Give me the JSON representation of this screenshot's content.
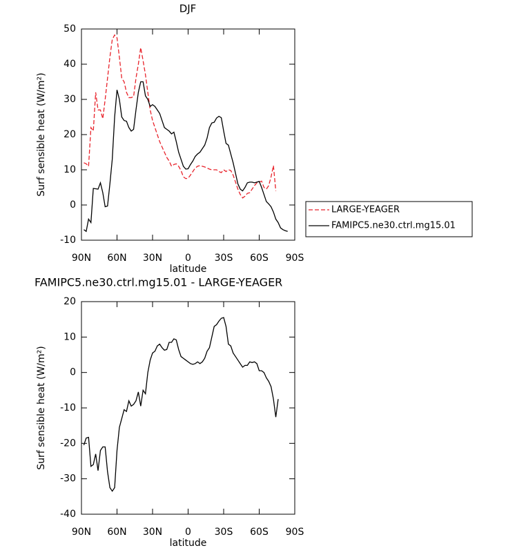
{
  "chart_data": [
    {
      "type": "line",
      "title": "DJF",
      "xlabel": "latitude",
      "ylabel": "Surf sensible heat (W/m²)",
      "xlim": [
        90,
        -90
      ],
      "xticks": [
        {
          "value": 90,
          "label": "90N"
        },
        {
          "value": 60,
          "label": "60N"
        },
        {
          "value": 30,
          "label": "30N"
        },
        0,
        {
          "value": -30,
          "label": "30S"
        },
        {
          "value": -60,
          "label": "60S"
        },
        {
          "value": -90,
          "label": "90S"
        }
      ],
      "ylim": [
        -10,
        50
      ],
      "yticks": [
        -10,
        0,
        10,
        20,
        30,
        40,
        50
      ],
      "legend": "right",
      "x": [
        88,
        86,
        84,
        82,
        80,
        78,
        76,
        74,
        72,
        70,
        68,
        66,
        64,
        62,
        60,
        58,
        56,
        54,
        52,
        50,
        48,
        46,
        44,
        42,
        40,
        38,
        36,
        34,
        32,
        30,
        28,
        26,
        24,
        22,
        20,
        18,
        16,
        14,
        12,
        10,
        8,
        6,
        4,
        2,
        0,
        -2,
        -4,
        -6,
        -8,
        -10,
        -12,
        -14,
        -16,
        -18,
        -20,
        -22,
        -24,
        -26,
        -28,
        -30,
        -32,
        -34,
        -36,
        -38,
        -40,
        -42,
        -44,
        -46,
        -48,
        -50,
        -52,
        -54,
        -56,
        -58,
        -60,
        -62,
        -64,
        -66,
        -68,
        -70,
        -72,
        -74,
        -76,
        -78,
        -80,
        -82,
        -84
      ],
      "series": [
        {
          "name": "LARGE-YEAGER",
          "color": "#e8222a",
          "dashed": true,
          "values": [
            12,
            11.7,
            11,
            22,
            21,
            32,
            27,
            27,
            24.5,
            30,
            36,
            42,
            47,
            48.3,
            47.5,
            42,
            36,
            35,
            32,
            30.5,
            30.5,
            30.8,
            36,
            40,
            44.7,
            41,
            37,
            32,
            27,
            24,
            22,
            20,
            18,
            16.5,
            15,
            13.5,
            12.5,
            11,
            11.5,
            11.7,
            11,
            9.8,
            8,
            7.5,
            7.6,
            8.5,
            9.5,
            10.5,
            11,
            11.2,
            11,
            10.8,
            10.5,
            10.2,
            10,
            10,
            10,
            9.5,
            9.2,
            10,
            9.5,
            10,
            9.8,
            8.5,
            6.5,
            4.5,
            3,
            2,
            2.5,
            3.3,
            3.5,
            4.5,
            5.5,
            6.3,
            6.5,
            6.8,
            5,
            4.5,
            5.5,
            8,
            11.2,
            4,
            null,
            null,
            null,
            null,
            null
          ]
        },
        {
          "name": "FAMIPC5.ne30.ctrl.mg15.01",
          "color": "#000000",
          "dashed": false,
          "values": [
            -7,
            -7.5,
            -4,
            -5,
            4.7,
            4.6,
            4.5,
            6.3,
            3.5,
            -0.5,
            -0.3,
            6,
            13,
            25,
            32.7,
            30,
            25,
            24,
            23.8,
            22,
            21,
            21.5,
            27,
            32,
            35,
            35,
            31,
            30,
            28,
            28.5,
            28,
            27,
            26,
            24,
            22,
            21.5,
            21,
            20.2,
            20.7,
            18,
            15,
            13,
            11,
            10.2,
            10.3,
            11.5,
            12.5,
            13.8,
            14.5,
            15,
            16,
            17,
            19,
            22,
            23.3,
            23.5,
            24.7,
            25.2,
            24.8,
            21,
            17.5,
            17,
            14.5,
            12,
            9,
            6,
            4.5,
            4,
            5,
            6.3,
            6.5,
            6.5,
            6.3,
            6.5,
            6.7,
            5,
            3,
            1,
            0.3,
            -0.5,
            -2,
            -4,
            -5,
            -6.5,
            -7,
            -7.3,
            -7.5
          ]
        }
      ]
    },
    {
      "type": "line",
      "title": "FAMIPC5.ne30.ctrl.mg15.01 - LARGE-YEAGER",
      "xlabel": "latitude",
      "ylabel": "Surf sensible heat (W/m²)",
      "xlim": [
        90,
        -90
      ],
      "xticks": [
        {
          "value": 90,
          "label": "90N"
        },
        {
          "value": 60,
          "label": "60N"
        },
        {
          "value": 30,
          "label": "30N"
        },
        0,
        {
          "value": -30,
          "label": "30S"
        },
        {
          "value": -60,
          "label": "60S"
        },
        {
          "value": -90,
          "label": "90S"
        }
      ],
      "ylim": [
        -40,
        20
      ],
      "yticks": [
        -40,
        -30,
        -20,
        -10,
        0,
        10,
        20
      ],
      "color": "#000000",
      "x": [
        88,
        86,
        84,
        82,
        80,
        78,
        76,
        74,
        72,
        70,
        68,
        66,
        64,
        62,
        60,
        58,
        56,
        54,
        52,
        50,
        48,
        46,
        44,
        42,
        40,
        38,
        36,
        34,
        32,
        30,
        28,
        26,
        24,
        22,
        20,
        18,
        16,
        14,
        12,
        10,
        8,
        6,
        4,
        2,
        0,
        -2,
        -4,
        -6,
        -8,
        -10,
        -12,
        -14,
        -16,
        -18,
        -20,
        -22,
        -24,
        -26,
        -28,
        -30,
        -32,
        -34,
        -36,
        -38,
        -40,
        -42,
        -44,
        -46,
        -48,
        -50,
        -52,
        -54,
        -56,
        -58,
        -60,
        -62,
        -64,
        -66,
        -68,
        -70,
        -72,
        -74,
        -76
      ],
      "values": [
        -20.5,
        -18.5,
        -18.3,
        -26.5,
        -26,
        -23,
        -27.7,
        -22,
        -21,
        -21,
        -28,
        -32.5,
        -33.5,
        -32.5,
        -22,
        -15.5,
        -13,
        -10.5,
        -11,
        -8,
        -9.5,
        -9,
        -8,
        -5.5,
        -9.5,
        -5,
        -6,
        0,
        3.5,
        5.5,
        6,
        7.5,
        8,
        7,
        6.3,
        6.5,
        8.5,
        8.5,
        9.5,
        9.2,
        6.5,
        4.5,
        4,
        3.5,
        3,
        2.5,
        2.3,
        2.5,
        3,
        2.5,
        3,
        4,
        6,
        7,
        10,
        13,
        13.5,
        14.5,
        15.3,
        15.5,
        13,
        8,
        7.5,
        5.5,
        4.5,
        3.5,
        2.5,
        1.5,
        2,
        2,
        3,
        2.8,
        3,
        2.5,
        0.5,
        0.5,
        0,
        -1.5,
        -2.5,
        -4,
        -7.5,
        -12.6,
        -7.5
      ]
    }
  ]
}
